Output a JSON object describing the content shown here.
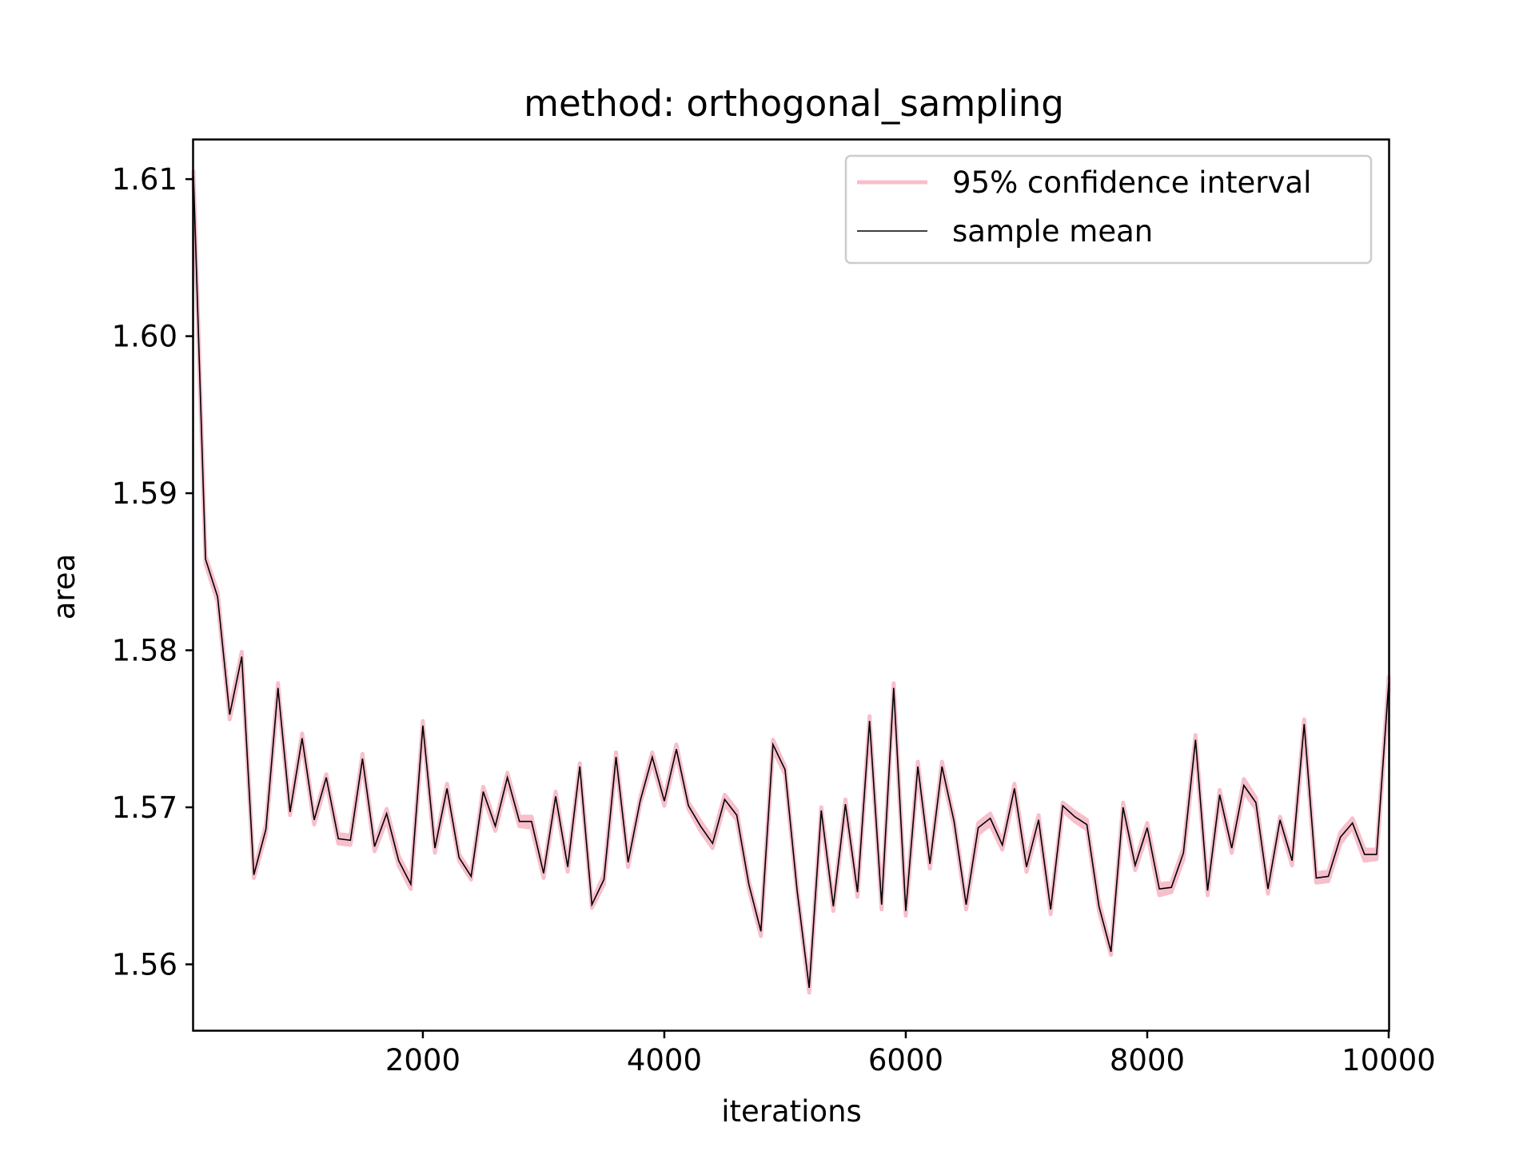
{
  "chart_data": {
    "type": "line",
    "title": "method: orthogonal_sampling",
    "xlabel": "iterations",
    "ylabel": "area",
    "xlim": [
      100,
      10000
    ],
    "ylim": [
      1.5558,
      1.6125
    ],
    "xticks": [
      2000,
      4000,
      6000,
      8000,
      10000
    ],
    "xtick_labels": [
      "2000",
      "4000",
      "6000",
      "8000",
      "10000"
    ],
    "yticks": [
      1.56,
      1.57,
      1.58,
      1.59,
      1.6,
      1.61
    ],
    "ytick_labels": [
      "1.56",
      "1.57",
      "1.58",
      "1.59",
      "1.60",
      "1.61"
    ],
    "grid": false,
    "legend_position": "top-right",
    "x": [
      100,
      200,
      300,
      400,
      500,
      600,
      700,
      800,
      900,
      1000,
      1100,
      1200,
      1300,
      1400,
      1500,
      1600,
      1700,
      1800,
      1900,
      2000,
      2100,
      2200,
      2300,
      2400,
      2500,
      2600,
      2700,
      2800,
      2900,
      3000,
      3100,
      3200,
      3300,
      3400,
      3500,
      3600,
      3700,
      3800,
      3900,
      4000,
      4100,
      4200,
      4300,
      4400,
      4500,
      4600,
      4700,
      4800,
      4900,
      5000,
      5100,
      5200,
      5300,
      5400,
      5500,
      5600,
      5700,
      5800,
      5900,
      6000,
      6100,
      6200,
      6300,
      6400,
      6500,
      6600,
      6700,
      6800,
      6900,
      7000,
      7100,
      7200,
      7300,
      7400,
      7500,
      7600,
      7700,
      7800,
      7900,
      8000,
      8100,
      8200,
      8300,
      8400,
      8500,
      8600,
      8700,
      8800,
      8900,
      9000,
      9100,
      9200,
      9300,
      9400,
      9500,
      9600,
      9700,
      9800,
      9900,
      10000
    ],
    "series": [
      {
        "name": "95% confidence interval",
        "role": "interval",
        "color": "#f7bfcc",
        "lower": [
          1.6098,
          1.5855,
          1.5831,
          1.5756,
          1.5792,
          1.5655,
          1.5683,
          1.5772,
          1.5695,
          1.5741,
          1.5689,
          1.5716,
          1.5677,
          1.5676,
          1.5728,
          1.5672,
          1.5692,
          1.5663,
          1.5648,
          1.5749,
          1.5671,
          1.5709,
          1.5666,
          1.5654,
          1.5707,
          1.5685,
          1.5716,
          1.5688,
          1.5687,
          1.5655,
          1.5704,
          1.5659,
          1.5723,
          1.5636,
          1.5651,
          1.5729,
          1.5662,
          1.5702,
          1.5729,
          1.5701,
          1.5734,
          1.5699,
          1.5685,
          1.5674,
          1.5702,
          1.5692,
          1.5648,
          1.5618,
          1.5737,
          1.5721,
          1.5645,
          1.5582,
          1.5695,
          1.5634,
          1.5699,
          1.5643,
          1.5752,
          1.5635,
          1.5773,
          1.5631,
          1.5723,
          1.5661,
          1.5723,
          1.5688,
          1.5635,
          1.5683,
          1.5689,
          1.5673,
          1.5709,
          1.5659,
          1.5689,
          1.5632,
          1.5698,
          1.5691,
          1.5686,
          1.5634,
          1.5606,
          1.5697,
          1.566,
          1.5683,
          1.5644,
          1.5646,
          1.5667,
          1.5739,
          1.5644,
          1.5705,
          1.5671,
          1.571,
          1.5699,
          1.5645,
          1.5689,
          1.5663,
          1.5749,
          1.5652,
          1.5653,
          1.5677,
          1.5687,
          1.5666,
          1.5667,
          1.5775
        ],
        "upper": [
          1.6105,
          1.586,
          1.5837,
          1.5762,
          1.5799,
          1.5659,
          1.5689,
          1.5779,
          1.57,
          1.5747,
          1.5694,
          1.5721,
          1.5683,
          1.5682,
          1.5734,
          1.5677,
          1.5699,
          1.5669,
          1.5654,
          1.5755,
          1.5676,
          1.5715,
          1.567,
          1.5658,
          1.5713,
          1.569,
          1.5722,
          1.5694,
          1.5694,
          1.566,
          1.571,
          1.5664,
          1.5728,
          1.564,
          1.5657,
          1.5735,
          1.5667,
          1.5706,
          1.5735,
          1.5706,
          1.574,
          1.5703,
          1.5691,
          1.568,
          1.5708,
          1.5698,
          1.5653,
          1.5623,
          1.5743,
          1.5726,
          1.5649,
          1.5587,
          1.57,
          1.5639,
          1.5705,
          1.5648,
          1.5758,
          1.564,
          1.5779,
          1.5637,
          1.5729,
          1.5666,
          1.5729,
          1.5693,
          1.564,
          1.569,
          1.5696,
          1.5678,
          1.5715,
          1.5665,
          1.5695,
          1.5637,
          1.5703,
          1.5697,
          1.5692,
          1.564,
          1.561,
          1.5703,
          1.5665,
          1.569,
          1.5651,
          1.5652,
          1.5674,
          1.5746,
          1.5649,
          1.5711,
          1.5676,
          1.5718,
          1.5706,
          1.565,
          1.5694,
          1.5668,
          1.5756,
          1.5658,
          1.5659,
          1.5684,
          1.5693,
          1.5673,
          1.5673,
          1.5783
        ]
      },
      {
        "name": "sample mean",
        "role": "line",
        "color": "#000000",
        "values": [
          1.6102,
          1.5858,
          1.5834,
          1.5759,
          1.5796,
          1.5657,
          1.5686,
          1.5776,
          1.5697,
          1.5744,
          1.5692,
          1.5719,
          1.568,
          1.5679,
          1.5731,
          1.5675,
          1.5696,
          1.5666,
          1.5651,
          1.5752,
          1.5674,
          1.5712,
          1.5668,
          1.5656,
          1.571,
          1.5688,
          1.5719,
          1.5691,
          1.5691,
          1.5658,
          1.5707,
          1.5662,
          1.5726,
          1.5638,
          1.5654,
          1.5732,
          1.5665,
          1.5704,
          1.5732,
          1.5704,
          1.5737,
          1.5701,
          1.5688,
          1.5677,
          1.5705,
          1.5695,
          1.5651,
          1.5621,
          1.574,
          1.5724,
          1.5647,
          1.5585,
          1.5698,
          1.5637,
          1.5702,
          1.5646,
          1.5755,
          1.5638,
          1.5776,
          1.5634,
          1.5726,
          1.5664,
          1.5726,
          1.5691,
          1.5638,
          1.5687,
          1.5693,
          1.5676,
          1.5712,
          1.5662,
          1.5692,
          1.5635,
          1.5701,
          1.5694,
          1.5689,
          1.5637,
          1.5608,
          1.57,
          1.5663,
          1.5687,
          1.5648,
          1.5649,
          1.5671,
          1.5743,
          1.5647,
          1.5708,
          1.5674,
          1.5714,
          1.5703,
          1.5648,
          1.5692,
          1.5666,
          1.5753,
          1.5655,
          1.5656,
          1.5681,
          1.569,
          1.567,
          1.567,
          1.5779
        ]
      }
    ]
  }
}
